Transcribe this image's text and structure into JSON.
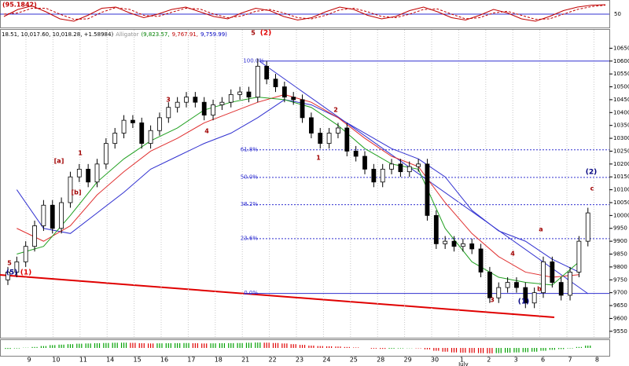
{
  "chart_data": {
    "type": "candlestick",
    "oscillator": {
      "title": "(95.1842)",
      "ylim": [
        0,
        100
      ],
      "yticks": [
        50
      ],
      "series": [
        {
          "name": "main",
          "color": "#c00000",
          "values": [
            40,
            70,
            85,
            60,
            30,
            20,
            45,
            75,
            80,
            55,
            35,
            50,
            70,
            80,
            60,
            40,
            30,
            55,
            75,
            65,
            40,
            25,
            35,
            60,
            80,
            70,
            45,
            30,
            40,
            65,
            80,
            60,
            35,
            25,
            45,
            70,
            55,
            30,
            20,
            40,
            65,
            80,
            88,
            90
          ]
        },
        {
          "name": "signal",
          "color": "#c00000",
          "dashed": true,
          "values": [
            50,
            55,
            75,
            75,
            50,
            28,
            30,
            58,
            78,
            70,
            45,
            40,
            58,
            75,
            72,
            50,
            35,
            42,
            62,
            70,
            55,
            35,
            30,
            45,
            68,
            75,
            60,
            40,
            35,
            50,
            70,
            72,
            50,
            30,
            35,
            55,
            62,
            45,
            28,
            30,
            50,
            70,
            82,
            88
          ]
        }
      ]
    },
    "info": [
      "18.51, 10,017.60, 10,018.28, +1.58984)",
      "Alligator",
      "(9,823.57,",
      "9,767.91,",
      "9,759.99)"
    ],
    "info_colors": [
      "#000000",
      "#909090",
      "#008000",
      "#c00000",
      "#0000c0"
    ],
    "ylim": [
      9525,
      10700
    ],
    "yticks": [
      9550,
      9600,
      9650,
      9700,
      9750,
      9800,
      9850,
      9900,
      9950,
      10000,
      10050,
      10100,
      10150,
      10200,
      10250,
      10300,
      10350,
      10400,
      10450,
      10500,
      10550,
      10600,
      10650
    ],
    "x_labels": [
      "9",
      "10",
      "11",
      "14",
      "15",
      "16",
      "17",
      "18",
      "21",
      "22",
      "23",
      "24",
      "25",
      "28",
      "29",
      "30",
      "1",
      "2",
      "3",
      "6",
      "7",
      "8"
    ],
    "month_label": "July",
    "open": [
      9750,
      9780,
      9820,
      9880,
      9960,
      10040,
      9950,
      10050,
      10150,
      10180,
      10130,
      10200,
      10280,
      10320,
      10370,
      10360,
      10280,
      10330,
      10380,
      10420,
      10440,
      10460,
      10440,
      10390,
      10430,
      10440,
      10470,
      10480,
      10460,
      10580,
      10530,
      10500,
      10460,
      10450,
      10380,
      10320,
      10280,
      10320,
      10340,
      10250,
      10230,
      10180,
      10130,
      10180,
      10200,
      10170,
      10190,
      10200,
      10000,
      9890,
      9900,
      9880,
      9890,
      9870,
      9780,
      9680,
      9720,
      9740,
      9720,
      9660,
      9700,
      9820,
      9740,
      9690,
      9780,
      9900
    ],
    "high": [
      9800,
      9840,
      9900,
      9980,
      10060,
      10060,
      10070,
      10170,
      10200,
      10200,
      10220,
      10300,
      10340,
      10390,
      10390,
      10380,
      10350,
      10400,
      10440,
      10460,
      10480,
      10480,
      10460,
      10450,
      10460,
      10490,
      10500,
      10500,
      10610,
      10600,
      10550,
      10520,
      10480,
      10470,
      10400,
      10340,
      10340,
      10360,
      10360,
      10270,
      10250,
      10200,
      10200,
      10220,
      10220,
      10210,
      10220,
      10220,
      10020,
      9920,
      9920,
      9910,
      9910,
      9890,
      9800,
      9740,
      9760,
      9760,
      9740,
      9720,
      9840,
      9840,
      9760,
      9800,
      9920,
      10030
    ],
    "low": [
      9730,
      9760,
      9800,
      9860,
      9940,
      9930,
      9930,
      10030,
      10130,
      10110,
      10110,
      10180,
      10260,
      10300,
      10340,
      10260,
      10260,
      10310,
      10360,
      10400,
      10420,
      10420,
      10370,
      10370,
      10410,
      10420,
      10450,
      10440,
      10440,
      10510,
      10480,
      10440,
      10430,
      10360,
      10300,
      10260,
      10260,
      10300,
      10230,
      10210,
      10160,
      10110,
      10110,
      10160,
      10150,
      10150,
      10170,
      9980,
      9870,
      9870,
      9860,
      9860,
      9850,
      9760,
      9660,
      9660,
      9700,
      9700,
      9640,
      9640,
      9680,
      9720,
      9670,
      9670,
      9760,
      9880
    ],
    "close": [
      9780,
      9820,
      9880,
      9960,
      10040,
      9950,
      10050,
      10150,
      10180,
      10130,
      10200,
      10280,
      10320,
      10370,
      10360,
      10280,
      10330,
      10380,
      10420,
      10440,
      10460,
      10440,
      10390,
      10430,
      10440,
      10470,
      10480,
      10460,
      10580,
      10530,
      10500,
      10460,
      10450,
      10380,
      10320,
      10280,
      10320,
      10340,
      10250,
      10230,
      10180,
      10130,
      10180,
      10200,
      10170,
      10190,
      10200,
      10000,
      9890,
      9900,
      9880,
      9890,
      9870,
      9780,
      9680,
      9720,
      9740,
      9720,
      9660,
      9700,
      9820,
      9740,
      9690,
      9780,
      9900,
      10010
    ],
    "series": [
      {
        "name": "jaw",
        "color": "#3030d0",
        "values": [
          10100,
          9950,
          9930,
          10010,
          10090,
          10180,
          10230,
          10280,
          10320,
          10380,
          10450,
          10430,
          10380,
          10320,
          10260,
          10220,
          10150,
          10020,
          9940,
          9900,
          9830,
          9780
        ]
      },
      {
        "name": "teeth",
        "color": "#e03030",
        "values": [
          9950,
          9900,
          9960,
          10080,
          10170,
          10250,
          10300,
          10360,
          10400,
          10440,
          10470,
          10440,
          10380,
          10300,
          10230,
          10190,
          10050,
          9930,
          9840,
          9780,
          9760,
          9770
        ]
      },
      {
        "name": "lips",
        "color": "#20a020",
        "values": [
          9850,
          9880,
          10000,
          10130,
          10220,
          10290,
          10340,
          10410,
          10440,
          10460,
          10450,
          10420,
          10350,
          10260,
          10200,
          10180,
          9950,
          9820,
          9760,
          9740,
          9730,
          9820
        ]
      }
    ],
    "fib_levels": [
      {
        "value": 10600,
        "label": "100.0%"
      },
      {
        "value": 10255,
        "label": "61.8%"
      },
      {
        "value": 10148,
        "label": "50.0%"
      },
      {
        "value": 10042,
        "label": "38.2%"
      },
      {
        "value": 9910,
        "label": "23.6%"
      },
      {
        "value": 9697,
        "label": "0.0%"
      }
    ],
    "annotations": [
      {
        "text": "5",
        "color": "#a00000"
      },
      {
        "text": "(5)",
        "color": "#000080"
      },
      {
        "text": "(1)",
        "color": "#e00000"
      },
      {
        "text": "[a]",
        "color": "#a00000"
      },
      {
        "text": "[b]",
        "color": "#a00000"
      },
      {
        "text": "1",
        "color": "#a00000"
      },
      {
        "text": "3",
        "color": "#a00000"
      },
      {
        "text": "4",
        "color": "#a00000"
      },
      {
        "text": "5",
        "color": "#a00000"
      },
      {
        "text": "(2)",
        "color": "#e00000"
      },
      {
        "text": "1",
        "color": "#a00000"
      },
      {
        "text": "2",
        "color": "#a00000"
      },
      {
        "text": "3",
        "color": "#a00000"
      },
      {
        "text": "4",
        "color": "#a00000"
      },
      {
        "text": "(1)",
        "color": "#000080"
      },
      {
        "text": "a",
        "color": "#a00000"
      },
      {
        "text": "b",
        "color": "#a00000"
      },
      {
        "text": "c",
        "color": "#a00000"
      },
      {
        "text": "(2)",
        "color": "#000080"
      }
    ],
    "histogram": {
      "ylim": [
        -150,
        150
      ],
      "up_color": "#00a000",
      "down_color": "#e00000",
      "values": [
        -20,
        -10,
        5,
        20,
        40,
        60,
        70,
        80,
        90,
        95,
        100,
        105,
        110,
        112,
        108,
        100,
        95,
        98,
        100,
        102,
        104,
        100,
        95,
        98,
        100,
        102,
        104,
        110,
        115,
        112,
        105,
        95,
        80,
        65,
        50,
        40,
        35,
        30,
        20,
        10,
        0,
        -15,
        -20,
        -15,
        -10,
        -5,
        -8,
        -30,
        -60,
        -80,
        -95,
        -100,
        -105,
        -110,
        -115,
        -110,
        -100,
        -95,
        -90,
        -80,
        -60,
        -40,
        -25,
        -10,
        20,
        50
      ]
    }
  }
}
